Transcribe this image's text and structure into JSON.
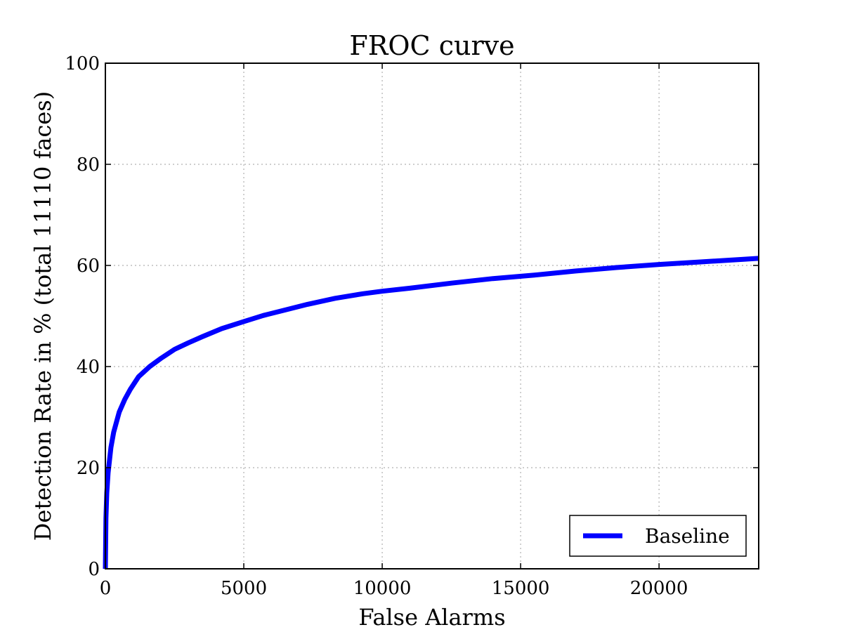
{
  "chart_data": {
    "type": "line",
    "title": "FROC curve",
    "xlabel": "False Alarms",
    "ylabel": "Detection Rate in % (total 11110 faces)",
    "xlim": [
      0,
      23600
    ],
    "ylim": [
      0,
      100
    ],
    "xticks": [
      0,
      5000,
      10000,
      15000,
      20000
    ],
    "xtick_labels": [
      "0",
      "5000",
      "10000",
      "15000",
      "20000"
    ],
    "yticks": [
      0,
      20,
      40,
      60,
      80,
      100
    ],
    "ytick_labels": [
      "0",
      "20",
      "40",
      "60",
      "80",
      "100"
    ],
    "grid": true,
    "legend_position": "lower-right",
    "series": [
      {
        "name": "Baseline",
        "color": "#0000ff",
        "x": [
          0,
          20,
          50,
          100,
          200,
          300,
          500,
          700,
          900,
          1200,
          1600,
          2000,
          2500,
          3000,
          3500,
          4200,
          5000,
          5700,
          6500,
          7300,
          8300,
          9300,
          10000,
          11000,
          12500,
          14000,
          15500,
          17000,
          18500,
          20000,
          21500,
          23000,
          23600
        ],
        "y": [
          0,
          10,
          15,
          19,
          24,
          27,
          31,
          33.5,
          35.5,
          38,
          40,
          41.6,
          43.4,
          44.7,
          45.9,
          47.5,
          48.9,
          50.1,
          51.2,
          52.3,
          53.5,
          54.4,
          54.9,
          55.5,
          56.5,
          57.4,
          58.1,
          58.9,
          59.6,
          60.2,
          60.7,
          61.2,
          61.4
        ]
      }
    ]
  }
}
